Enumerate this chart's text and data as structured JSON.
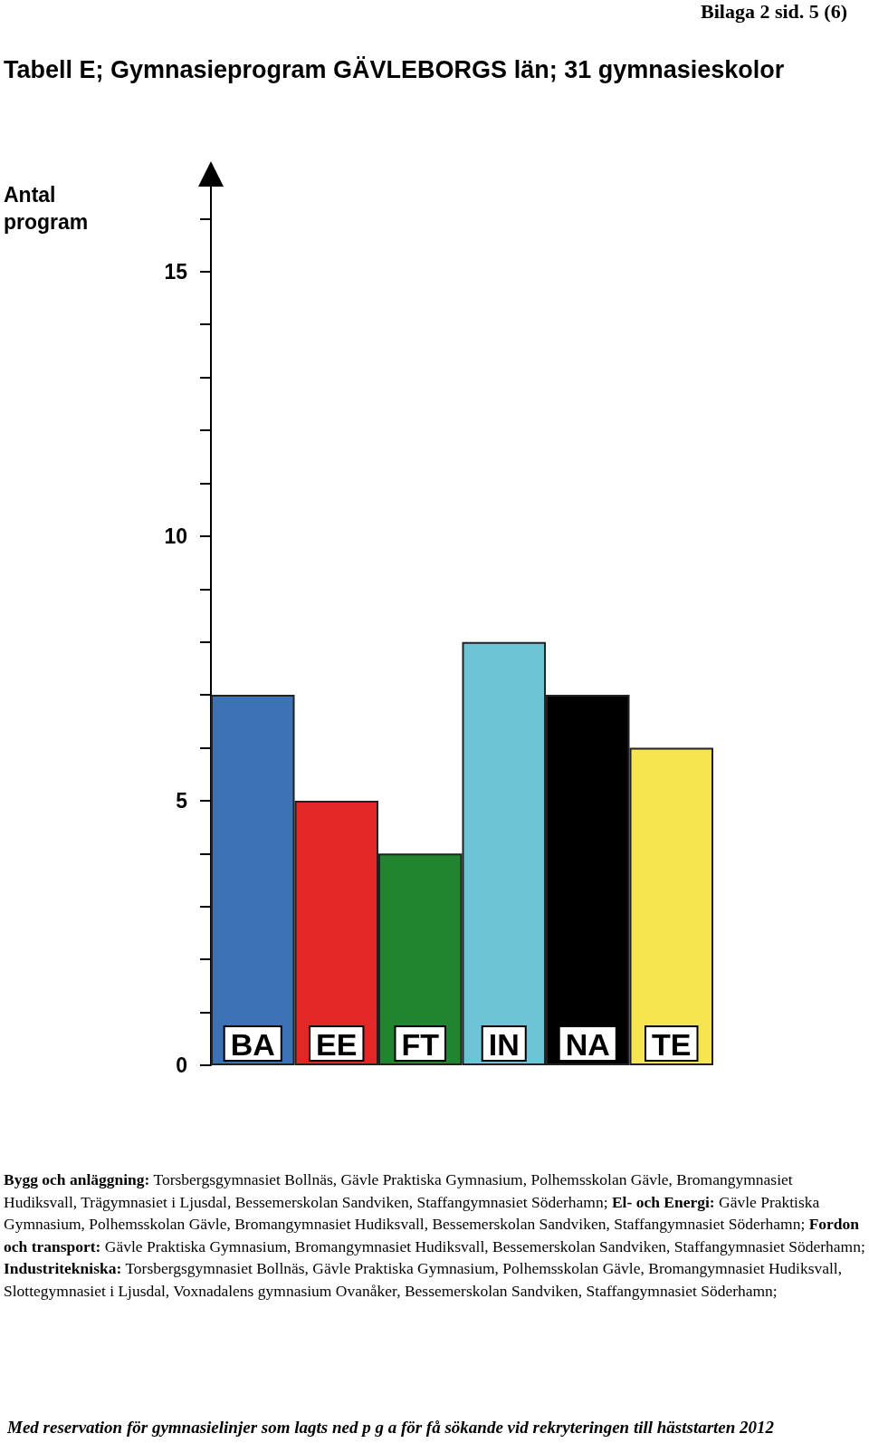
{
  "chart_data": {
    "type": "bar",
    "title": "Tabell  E;  Gymnasieprogram GÄVLEBORGS län; 31 gymnasieskolor",
    "subtitle": "Bilaga 2   sid. 5 (6)",
    "ylabel": "Antal program",
    "categories": [
      "BA",
      "EE",
      "FT",
      "IN",
      "NA",
      "TE"
    ],
    "values": [
      7,
      5,
      4,
      8,
      7,
      6
    ],
    "colors": [
      "#3f72b5",
      "#e32726",
      "#22842e",
      "#6cc4d6",
      "#000000",
      "#f5e64f"
    ],
    "ylim": [
      0,
      17
    ],
    "yticks": [
      0,
      {
        "value": 1,
        "label": null
      },
      {
        "value": 2,
        "label": null
      },
      {
        "value": 3,
        "label": null
      },
      {
        "value": 4,
        "label": null
      },
      5,
      {
        "value": 6,
        "label": null
      },
      {
        "value": 7,
        "label": null
      },
      {
        "value": 8,
        "label": null
      },
      {
        "value": 9,
        "label": null
      },
      10,
      {
        "value": 11,
        "label": null
      },
      {
        "value": 12,
        "label": null
      },
      {
        "value": 13,
        "label": null
      },
      {
        "value": 14,
        "label": null
      },
      15,
      {
        "value": 16,
        "label": null
      }
    ],
    "grid": false,
    "annotations": [
      "Bygg och anläggning: Torsbergsgymnasiet Bollnäs, Gävle Praktiska Gymnasium, Polhemsskolan Gävle, Bromangymnasiet Hudiksvall, Trägymnasiet i Ljusdal, Bessemerskolan Sandviken, Staffangymnasiet Söderhamn;",
      "El- och Energi: Gävle Praktiska Gymnasium, Polhemsskolan Gävle, Bromangymnasiet Hudiksvall, Bessemerskolan Sandviken, Staffangymnasiet Söderhamn;",
      "Fordon och transport: Gävle Praktiska Gymnasium, Bromangymnasiet Hudiksvall, Bessemerskolan Sandviken, Staffangymnasiet Söderhamn;",
      "Industritekniska: Torsbergsgymnasiet Bollnäs, Gävle Praktiska Gymnasium, Polhemsskolan Gävle, Bromangymnasiet Hudiksvall, Slottegymnasiet i Ljusdal, Voxnadalens gymnasium Ovanåker, Bessemerskolan Sandviken, Staffangymnasiet Söderhamn;",
      "Med reservation för gymnasielinjer som lagts ned p g a för få sökande vid rekryteringen till häststarten 2012"
    ]
  }
}
